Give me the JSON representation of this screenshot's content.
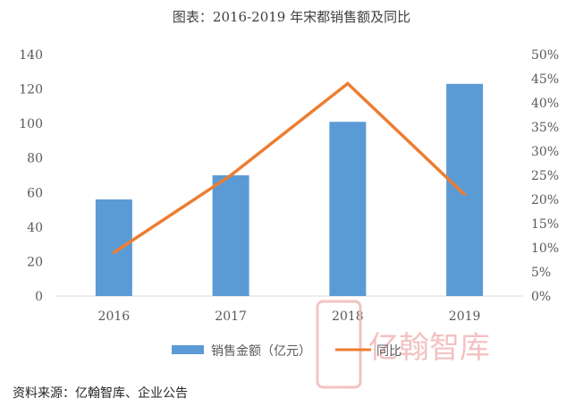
{
  "chart_data": {
    "type": "bar",
    "title": "图表：2016-2019 年宋都销售额及同比",
    "categories": [
      "2016",
      "2017",
      "2018",
      "2019"
    ],
    "series": [
      {
        "name": "销售金额（亿元）",
        "type": "bar",
        "axis": "left",
        "color": "#5b9bd5",
        "values": [
          56,
          70,
          101,
          123
        ]
      },
      {
        "name": "同比",
        "type": "line",
        "axis": "right",
        "color": "#ed7d31",
        "values": [
          0.09,
          0.25,
          0.44,
          0.21
        ]
      }
    ],
    "y_left": {
      "min": 0,
      "max": 140,
      "ticks": [
        "0",
        "20",
        "40",
        "60",
        "80",
        "100",
        "120",
        "140"
      ]
    },
    "y_right": {
      "min": 0,
      "max": 0.5,
      "ticks": [
        "0%",
        "5%",
        "10%",
        "15%",
        "20%",
        "25%",
        "30%",
        "35%",
        "40%",
        "45%",
        "50%"
      ]
    },
    "grid": false,
    "legend_position": "bottom"
  },
  "source": "资料来源：亿翰智库、企业公告",
  "watermark": {
    "text": "亿翰智库"
  }
}
